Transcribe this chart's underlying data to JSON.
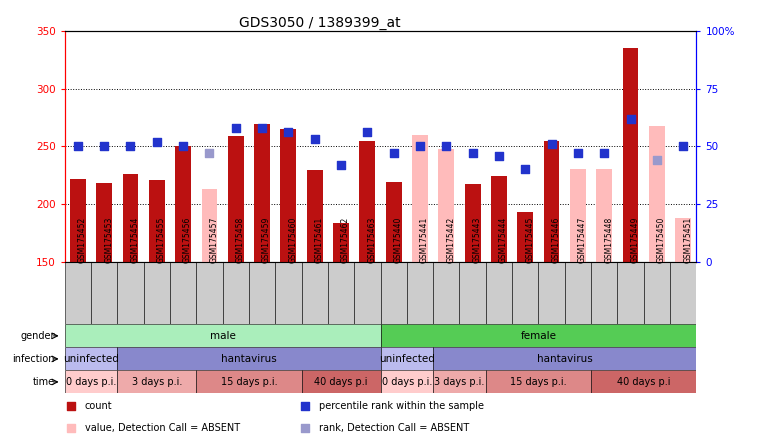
{
  "title": "GDS3050 / 1389399_at",
  "samples": [
    "GSM175452",
    "GSM175453",
    "GSM175454",
    "GSM175455",
    "GSM175456",
    "GSM175457",
    "GSM175458",
    "GSM175459",
    "GSM175460",
    "GSM175461",
    "GSM175462",
    "GSM175463",
    "GSM175440",
    "GSM175441",
    "GSM175442",
    "GSM175443",
    "GSM175444",
    "GSM175445",
    "GSM175446",
    "GSM175447",
    "GSM175448",
    "GSM175449",
    "GSM175450",
    "GSM175451"
  ],
  "count_values": [
    222,
    218,
    226,
    221,
    250,
    null,
    259,
    269,
    265,
    229,
    183,
    255,
    219,
    null,
    null,
    217,
    224,
    193,
    255,
    null,
    null,
    335,
    null,
    null
  ],
  "count_absent": [
    false,
    false,
    false,
    false,
    false,
    true,
    false,
    false,
    false,
    false,
    false,
    false,
    false,
    true,
    true,
    false,
    false,
    false,
    false,
    true,
    true,
    false,
    true,
    true
  ],
  "absent_values": [
    null,
    null,
    null,
    null,
    null,
    213,
    null,
    null,
    null,
    null,
    null,
    null,
    null,
    260,
    248,
    null,
    null,
    null,
    null,
    230,
    230,
    null,
    268,
    188
  ],
  "percentile_rank": [
    50,
    50,
    50,
    52,
    50,
    47,
    58,
    58,
    56,
    53,
    42,
    56,
    47,
    50,
    50,
    47,
    46,
    40,
    51,
    47,
    47,
    62,
    44,
    50
  ],
  "rank_absent": [
    false,
    false,
    false,
    false,
    false,
    true,
    false,
    false,
    false,
    false,
    false,
    false,
    false,
    false,
    false,
    false,
    false,
    false,
    false,
    false,
    false,
    false,
    true,
    false
  ],
  "ylim_left": [
    150,
    350
  ],
  "ylim_right": [
    0,
    100
  ],
  "yticks_left": [
    150,
    200,
    250,
    300,
    350
  ],
  "yticks_right": [
    0,
    25,
    50,
    75,
    100
  ],
  "colors": {
    "count_bar": "#bb1111",
    "absent_bar": "#ffbbbb",
    "rank_dot": "#2233cc",
    "absent_rank_dot": "#9999cc",
    "background": "#ffffff",
    "xlabel_bg": "#cccccc",
    "gender_male_bg": "#aaeebb",
    "gender_female_bg": "#55cc55",
    "infection_uninfected_bg": "#bbbbee",
    "infection_hantavirus_bg": "#8888cc",
    "time_0days_bg": "#ffcccc",
    "time_3days_bg": "#eeaaaa",
    "time_15days_bg": "#dd8888",
    "time_40days_bg": "#cc6666"
  },
  "gender_groups": [
    {
      "label": "male",
      "start": 0,
      "end": 11
    },
    {
      "label": "female",
      "start": 12,
      "end": 23
    }
  ],
  "infection_groups": [
    {
      "label": "uninfected",
      "start": 0,
      "end": 1
    },
    {
      "label": "hantavirus",
      "start": 2,
      "end": 11
    },
    {
      "label": "uninfected",
      "start": 12,
      "end": 13
    },
    {
      "label": "hantavirus",
      "start": 14,
      "end": 23
    }
  ],
  "time_groups": [
    {
      "label": "0 days p.i.",
      "start": 0,
      "end": 1
    },
    {
      "label": "3 days p.i.",
      "start": 2,
      "end": 4
    },
    {
      "label": "15 days p.i.",
      "start": 5,
      "end": 8
    },
    {
      "label": "40 days p.i",
      "start": 9,
      "end": 11
    },
    {
      "label": "0 days p.i.",
      "start": 12,
      "end": 13
    },
    {
      "label": "3 days p.i.",
      "start": 14,
      "end": 15
    },
    {
      "label": "15 days p.i.",
      "start": 16,
      "end": 19
    },
    {
      "label": "40 days p.i",
      "start": 20,
      "end": 23
    }
  ],
  "legend_items": [
    {
      "label": "count",
      "color": "#bb1111",
      "marker": "s"
    },
    {
      "label": "percentile rank within the sample",
      "color": "#2233cc",
      "marker": "s"
    },
    {
      "label": "value, Detection Call = ABSENT",
      "color": "#ffbbbb",
      "marker": "s"
    },
    {
      "label": "rank, Detection Call = ABSENT",
      "color": "#9999cc",
      "marker": "s"
    }
  ]
}
